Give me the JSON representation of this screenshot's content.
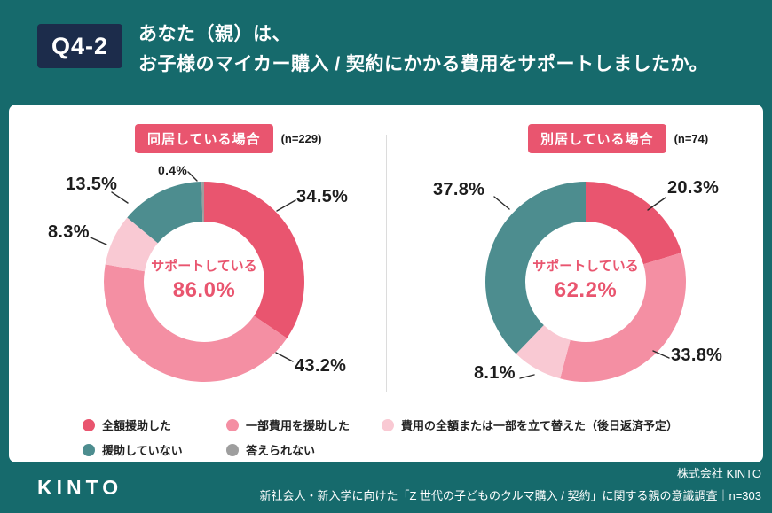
{
  "header": {
    "badge": "Q4-2",
    "title_line1": "あなた（親）は、",
    "title_line2": "お子様のマイカー購入 / 契約にかかる費用をサポートしましたか。"
  },
  "chart_data": [
    {
      "type": "pie",
      "subtype": "donut",
      "title": "同居している場合",
      "n_label": "(n=229)",
      "n": 229,
      "center_label": "サポートしている",
      "center_value": "86.0%",
      "legend_position": "bottom",
      "segments": [
        {
          "label": "全額援助した",
          "value": 34.5,
          "display": "34.5%",
          "color": "#E9556F"
        },
        {
          "label": "一部費用を援助した",
          "value": 43.2,
          "display": "43.2%",
          "color": "#F48FA3"
        },
        {
          "label": "費用の全額または一部を立て替えた（後日返済予定）",
          "value": 8.3,
          "display": "8.3%",
          "color": "#F9C9D3"
        },
        {
          "label": "援助していない",
          "value": 13.5,
          "display": "13.5%",
          "color": "#4D8D8F"
        },
        {
          "label": "答えられない",
          "value": 0.4,
          "display": "0.4%",
          "color": "#9E9E9E"
        }
      ]
    },
    {
      "type": "pie",
      "subtype": "donut",
      "title": "別居している場合",
      "n_label": "(n=74)",
      "n": 74,
      "center_label": "サポートしている",
      "center_value": "62.2%",
      "legend_position": "bottom",
      "segments": [
        {
          "label": "全額援助した",
          "value": 20.3,
          "display": "20.3%",
          "color": "#E9556F"
        },
        {
          "label": "一部費用を援助した",
          "value": 33.8,
          "display": "33.8%",
          "color": "#F48FA3"
        },
        {
          "label": "費用の全額または一部を立て替えた（後日返済予定）",
          "value": 8.1,
          "display": "8.1%",
          "color": "#F9C9D3"
        },
        {
          "label": "援助していない",
          "value": 37.8,
          "display": "37.8%",
          "color": "#4D8D8F"
        }
      ]
    }
  ],
  "legend": [
    {
      "label": "全額援助した",
      "color": "#E9556F"
    },
    {
      "label": "一部費用を援助した",
      "color": "#F48FA3"
    },
    {
      "label": "費用の全額または一部を立て替えた（後日返済予定）",
      "color": "#F9C9D3"
    },
    {
      "label": "援助していない",
      "color": "#4D8D8F"
    },
    {
      "label": "答えられない",
      "color": "#9E9E9E"
    }
  ],
  "footer": {
    "logo": "KINTO",
    "company": "株式会社 KINTO",
    "description": "新社会人・新入学に向けた「Z 世代の子どものクルマ購入 / 契約」に関する親の意識調査｜n=303"
  },
  "colors": {
    "background": "#166A6C",
    "question_badge_bg": "#1C2C4B",
    "accent_pink": "#E9556F",
    "card_bg": "#FFFFFF"
  }
}
